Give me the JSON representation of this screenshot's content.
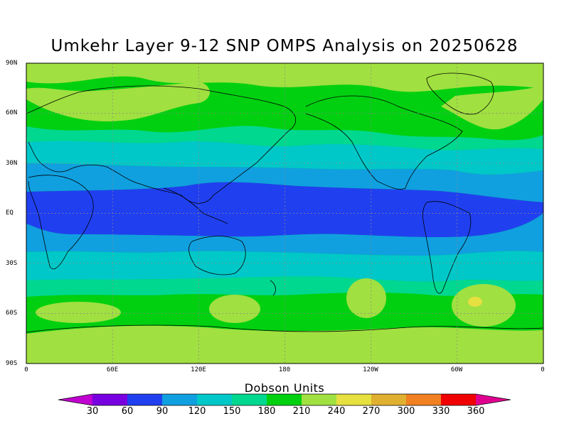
{
  "title": "Umkehr Layer 9-12 SNP OMPS Analysis on 20250628",
  "colorbar": {
    "title": "Dobson Units",
    "ticks": [
      "30",
      "60",
      "90",
      "120",
      "150",
      "180",
      "210",
      "240",
      "270",
      "300",
      "330",
      "360"
    ],
    "colors": [
      "#c000d0",
      "#7800e0",
      "#2040f0",
      "#10a0e0",
      "#00c8c8",
      "#00d890",
      "#00d010",
      "#a0e040",
      "#e6e040",
      "#e0b030",
      "#f08020",
      "#f00000",
      "#e00090"
    ]
  },
  "map": {
    "lat_ticks": [
      "90N",
      "60N",
      "30N",
      "EQ",
      "30S",
      "60S",
      "90S"
    ],
    "lon_ticks": [
      "0",
      "60E",
      "120E",
      "180",
      "120W",
      "60W",
      "0"
    ]
  },
  "chart_data": {
    "type": "heatmap",
    "title": "Umkehr Layer 9-12 SNP OMPS Analysis on 20250628",
    "units": "Dobson Units",
    "xlim": [
      0,
      360
    ],
    "ylim": [
      -90,
      90
    ],
    "levels": [
      30,
      60,
      90,
      120,
      150,
      180,
      210,
      240,
      270,
      300,
      330,
      360
    ],
    "zonal_bands_DU": [
      {
        "lat": [
          75,
          90
        ],
        "range": [
          210,
          240
        ]
      },
      {
        "lat": [
          55,
          75
        ],
        "range": [
          180,
          240
        ]
      },
      {
        "lat": [
          40,
          55
        ],
        "range": [
          150,
          180
        ]
      },
      {
        "lat": [
          25,
          40
        ],
        "range": [
          120,
          150
        ]
      },
      {
        "lat": [
          12,
          25
        ],
        "range": [
          90,
          120
        ]
      },
      {
        "lat": [
          -12,
          12
        ],
        "range": [
          60,
          90
        ]
      },
      {
        "lat": [
          -25,
          -12
        ],
        "range": [
          90,
          120
        ]
      },
      {
        "lat": [
          -40,
          -25
        ],
        "range": [
          120,
          150
        ]
      },
      {
        "lat": [
          -50,
          -40
        ],
        "range": [
          150,
          180
        ]
      },
      {
        "lat": [
          -60,
          -50
        ],
        "range": [
          180,
          210
        ]
      },
      {
        "lat": [
          -75,
          -60
        ],
        "range": [
          180,
          240
        ]
      },
      {
        "lat": [
          -90,
          -75
        ],
        "range": [
          210,
          240
        ]
      }
    ],
    "max_region": {
      "lon_range": [
        300,
        320
      ],
      "lat_range": [
        -60,
        -50
      ],
      "range": [
        240,
        270
      ]
    }
  }
}
